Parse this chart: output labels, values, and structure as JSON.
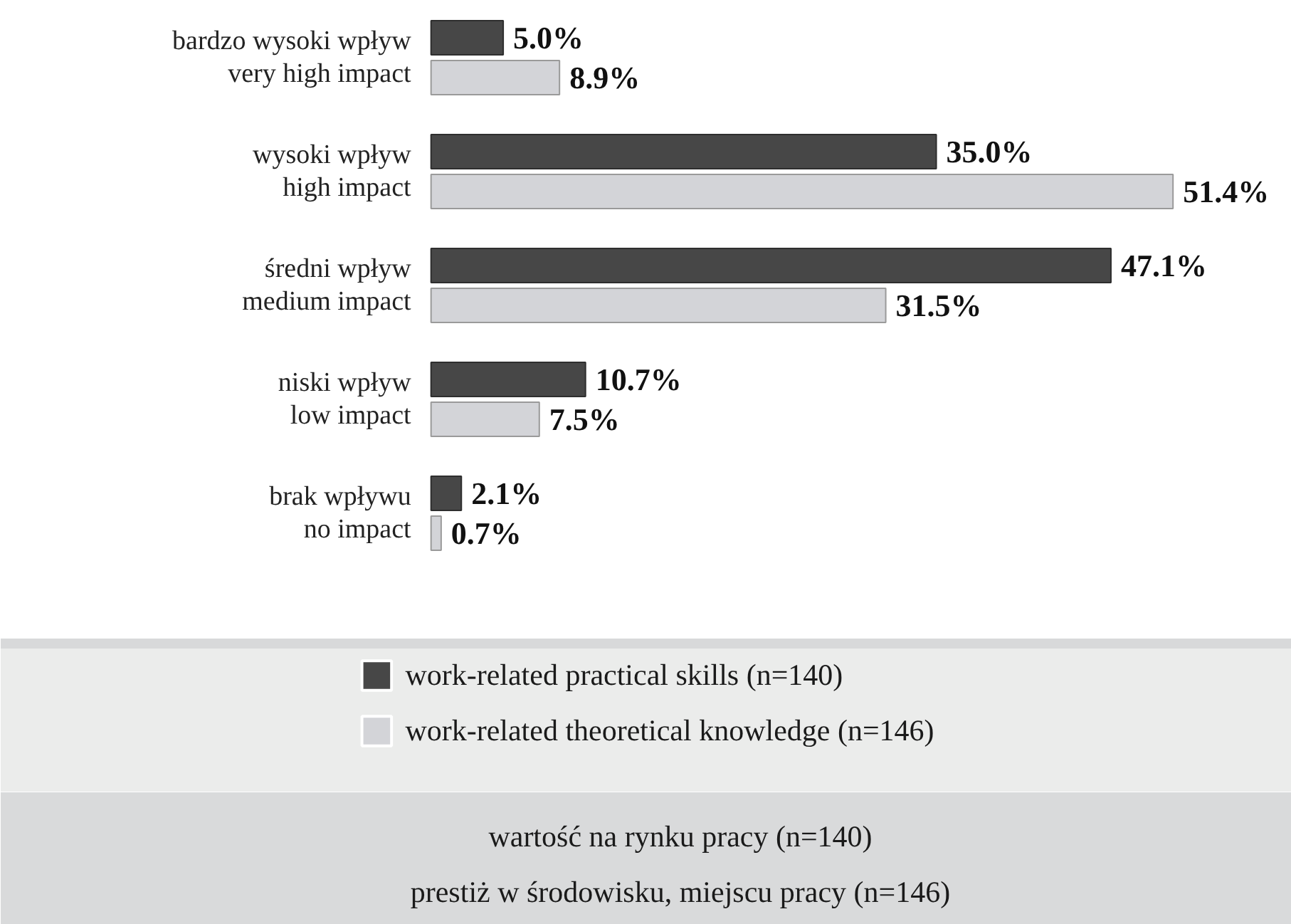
{
  "chart_data": {
    "type": "bar",
    "orientation": "horizontal",
    "categories": [
      "bardzo wysoki wpływ\nvery high impact",
      "wysoki wpływ\nhigh impact",
      "średni wpływ\nmedium impact",
      "niski wpływ\nlow impact",
      "brak wpływu\nno impact"
    ],
    "series": [
      {
        "name": "work-related practical skills (n=140)",
        "color": "#474747",
        "values": [
          5.0,
          35.0,
          47.1,
          10.7,
          2.1
        ],
        "value_labels": [
          "5.0%",
          "35.0%",
          "47.1%",
          "10.7%",
          "2.1%"
        ]
      },
      {
        "name": "work-related theoretical knowledge (n=146)",
        "color": "#d3d4d8",
        "values": [
          8.9,
          51.4,
          31.5,
          7.5,
          0.7
        ],
        "value_labels": [
          "8.9%",
          "51.4%",
          "31.5%",
          "7.5%",
          "0.7%"
        ]
      }
    ],
    "annotations": [
      "wartość na rynku pracy (n=140)",
      "prestiż w środowisku, miejscu pracy (n=146)"
    ],
    "legend": "bottom"
  }
}
